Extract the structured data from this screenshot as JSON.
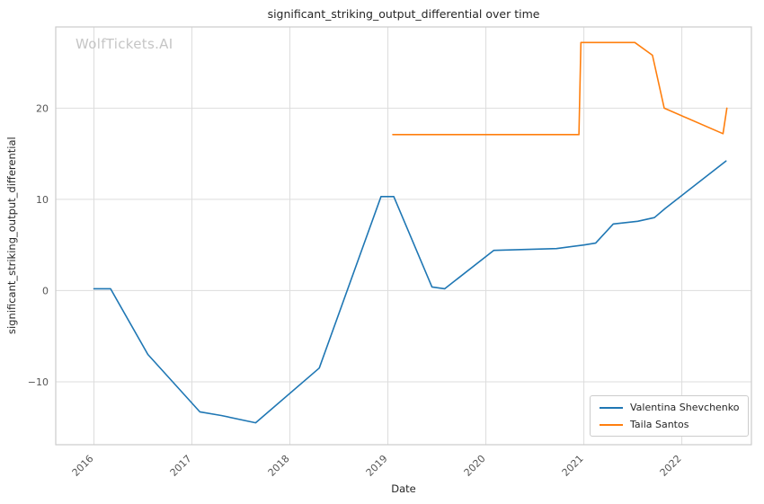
{
  "watermark": "WolfTickets.AI",
  "chart_data": {
    "type": "line",
    "title": "significant_striking_output_differential over time",
    "xlabel": "Date",
    "ylabel": "significant_striking_output_differential",
    "xlim": [
      2015.61,
      2022.71
    ],
    "ylim": [
      -16.9,
      28.9
    ],
    "xticks": [
      2016,
      2017,
      2018,
      2019,
      2020,
      2021,
      2022
    ],
    "yticks": [
      -10,
      0,
      10,
      20
    ],
    "grid": true,
    "legend_position": "lower right",
    "series": [
      {
        "name": "Valentina Shevchenko",
        "color": "#1f77b4",
        "points": [
          [
            2016.0,
            0.2
          ],
          [
            2016.17,
            0.2
          ],
          [
            2016.55,
            -7.0
          ],
          [
            2017.08,
            -13.3
          ],
          [
            2017.3,
            -13.7
          ],
          [
            2017.65,
            -14.5
          ],
          [
            2018.3,
            -8.5
          ],
          [
            2018.93,
            10.3
          ],
          [
            2019.06,
            10.3
          ],
          [
            2019.45,
            0.4
          ],
          [
            2019.58,
            0.2
          ],
          [
            2020.08,
            4.4
          ],
          [
            2020.4,
            4.5
          ],
          [
            2020.72,
            4.6
          ],
          [
            2021.0,
            5.0
          ],
          [
            2021.12,
            5.2
          ],
          [
            2021.3,
            7.3
          ],
          [
            2021.55,
            7.6
          ],
          [
            2021.72,
            8.0
          ],
          [
            2021.83,
            9.0
          ],
          [
            2022.45,
            14.2
          ]
        ]
      },
      {
        "name": "Taila Santos",
        "color": "#ff7f0e",
        "points": [
          [
            2019.05,
            17.1
          ],
          [
            2020.95,
            17.1
          ],
          [
            2020.97,
            27.2
          ],
          [
            2021.52,
            27.2
          ],
          [
            2021.7,
            25.8
          ],
          [
            2021.82,
            20.0
          ],
          [
            2022.42,
            17.2
          ],
          [
            2022.46,
            20.0
          ]
        ]
      }
    ]
  }
}
